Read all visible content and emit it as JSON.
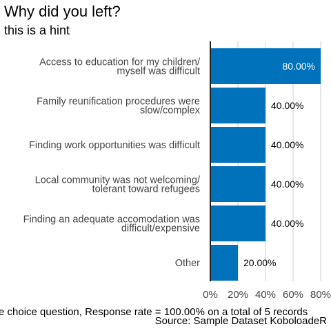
{
  "chart_data": {
    "type": "bar",
    "orientation": "horizontal",
    "title": "Why did you left?",
    "subtitle": "this is a hint",
    "categories": [
      [
        "Access to education for my children/",
        "myself was difficult"
      ],
      [
        "Family reunification procedures were",
        "slow/complex"
      ],
      [
        "Finding work opportunities was difficult"
      ],
      [
        "Local community was not welcoming/",
        "tolerant toward refugees"
      ],
      [
        "Finding an adequate accomodation was",
        "difficult/expensive"
      ],
      [
        "Other"
      ]
    ],
    "values": [
      0.8,
      0.4,
      0.4,
      0.4,
      0.4,
      0.2
    ],
    "value_labels": [
      "80.00%",
      "40.00%",
      "40.00%",
      "40.00%",
      "40.00%",
      "20.00%"
    ],
    "x_ticks": [
      "0%",
      "20%",
      "40%",
      "60%",
      "80%"
    ],
    "xlim": [
      0,
      0.8
    ],
    "grid": true,
    "caption": "e choice question, Response rate = 100.00% on a total of 5 records",
    "source": "Source: Sample Dataset KoboloadeR",
    "colors": {
      "bar": "#0072bc",
      "label_inside": "#ffffff",
      "label_outside": "#000000",
      "grid": "#cccccc",
      "axis": "#222222"
    }
  }
}
